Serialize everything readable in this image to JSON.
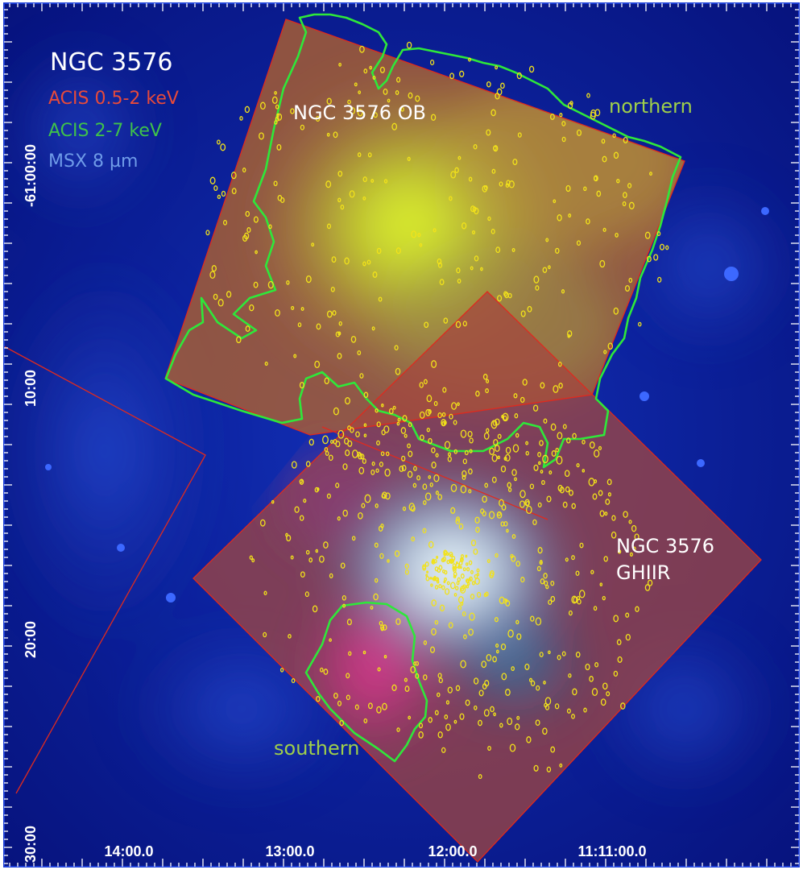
{
  "figure": {
    "title": "NGC 3576",
    "legend": [
      {
        "text": "ACIS 0.5-2 keV",
        "color": "#e84a3a"
      },
      {
        "text": "ACIS 2-7 keV",
        "color": "#3fc24a"
      },
      {
        "text": "MSX 8 µm",
        "color": "#6f9be8"
      }
    ],
    "labels": {
      "ob": "NGC 3576 OB",
      "ghiir_line1": "NGC 3576",
      "ghiir_line2": "GHIIR",
      "northern": "northern",
      "southern": "southern"
    },
    "axes": {
      "dec_ticks": [
        "-61:00:00",
        "10:00",
        "20:00",
        "30:00"
      ],
      "ra_ticks": [
        "14:00.0",
        "13:00.0",
        "12:00.0",
        "11:11:00.0"
      ]
    },
    "colors": {
      "background": "#0a1a8c",
      "frame": "#1d3fd6",
      "field_outline": "#e02a1e",
      "contour": "#2ee83a",
      "source": "#f2e21a",
      "region_label_green": "#9fcf4a"
    }
  }
}
